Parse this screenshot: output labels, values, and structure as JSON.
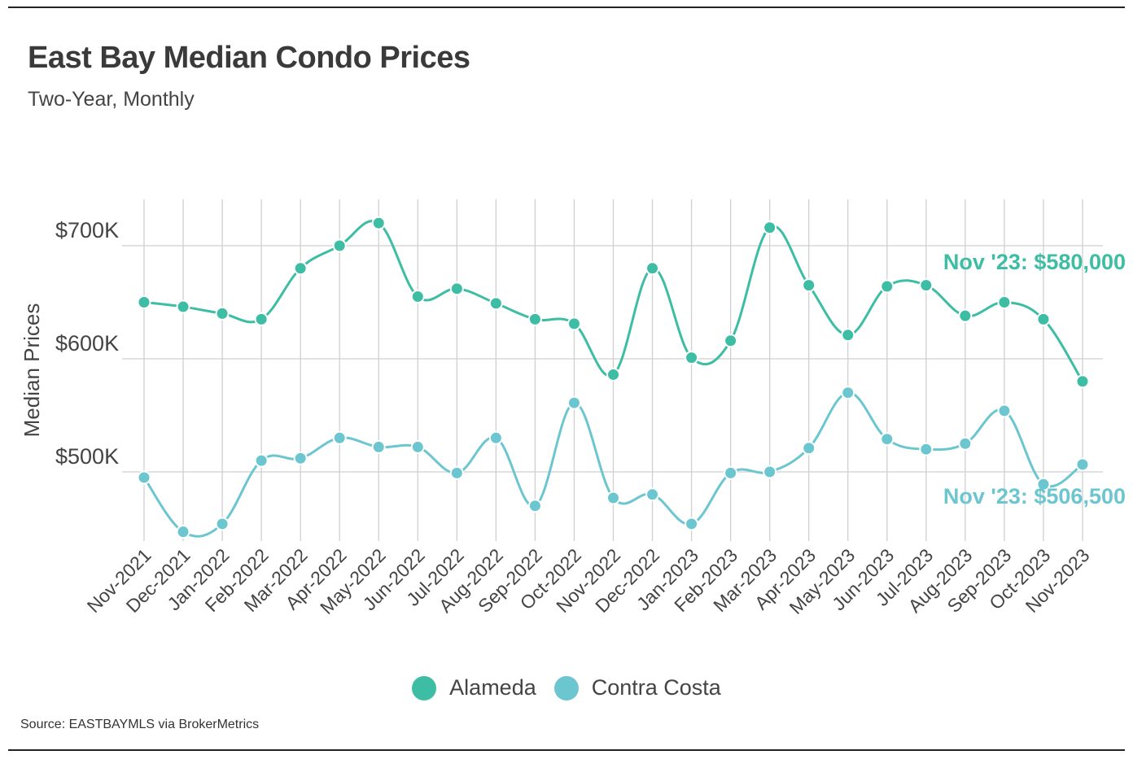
{
  "header": {
    "title": "East Bay Median Condo Prices",
    "subtitle": "Two-Year, Monthly"
  },
  "source": "Source:  EASTBAYMLS via BrokerMetrics",
  "colors": {
    "alameda": "#3dbda4",
    "contra_costa": "#6cc6d0",
    "grid": "#cfcfcf",
    "axis_text": "#444444"
  },
  "chart_data": {
    "type": "line",
    "title": "East Bay Median Condo Prices",
    "subtitle": "Two-Year, Monthly",
    "xlabel": "",
    "ylabel": "Median Prices",
    "ylim": [
      436000,
      740000
    ],
    "yticks": [
      500000,
      600000,
      700000
    ],
    "ytick_labels": [
      "$500K",
      "$600K",
      "$700K"
    ],
    "categories": [
      "Nov-2021",
      "Dec-2021",
      "Jan-2022",
      "Feb-2022",
      "Mar-2022",
      "Apr-2022",
      "May-2022",
      "Jun-2022",
      "Jul-2022",
      "Aug-2022",
      "Sep-2022",
      "Oct-2022",
      "Nov-2022",
      "Dec-2022",
      "Jan-2023",
      "Feb-2023",
      "Mar-2023",
      "Apr-2023",
      "May-2023",
      "Jun-2023",
      "Jul-2023",
      "Aug-2023",
      "Sep-2023",
      "Oct-2023",
      "Nov-2023"
    ],
    "series": [
      {
        "name": "Alameda",
        "color": "#3dbda4",
        "values": [
          650000,
          646000,
          640000,
          635000,
          680000,
          700000,
          720000,
          655000,
          662000,
          649000,
          635000,
          631000,
          586000,
          680000,
          601000,
          616000,
          716000,
          665000,
          621000,
          664000,
          665000,
          638000,
          650000,
          635000,
          580000
        ],
        "end_label": "Nov '23: $580,000"
      },
      {
        "name": "Contra Costa",
        "color": "#6cc6d0",
        "values": [
          495000,
          447000,
          454000,
          510000,
          512000,
          530000,
          522000,
          522000,
          499000,
          530000,
          470000,
          561000,
          477000,
          480000,
          454000,
          499000,
          500000,
          521000,
          570000,
          529000,
          520000,
          525000,
          554000,
          489000,
          506500
        ],
        "end_label": "Nov '23: $506,500"
      }
    ],
    "legend": [
      "Alameda",
      "Contra Costa"
    ],
    "legend_position": "bottom-center",
    "grid": true
  }
}
